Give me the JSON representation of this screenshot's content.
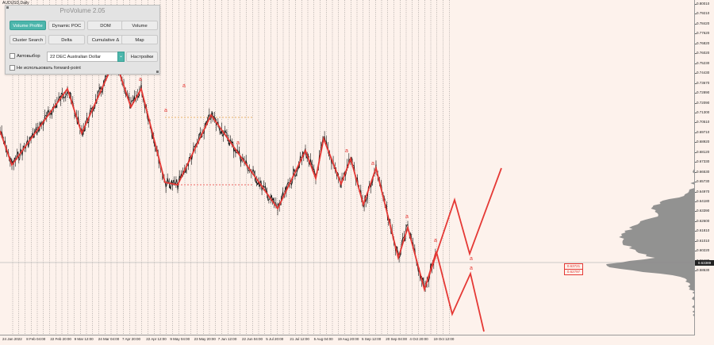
{
  "symbol_label": "AUDUSD,Daily",
  "panel": {
    "title": "ProVolume 2.05",
    "buttons": [
      {
        "label": "Volume Profile",
        "active": true
      },
      {
        "label": "Dynamic POC",
        "active": false
      },
      {
        "label": "DOM",
        "active": false
      },
      {
        "label": "Volume",
        "active": false
      },
      {
        "label": "Cluster Search",
        "active": false
      },
      {
        "label": "Delta",
        "active": false
      },
      {
        "label": "Cumulative Δ",
        "active": false
      },
      {
        "label": "Map",
        "active": false
      }
    ],
    "auto_select_label": "Автовыбор",
    "symbol_value": "22 DEC Australian Dollar",
    "dropdown_glyph": "⌄",
    "settings_label": "Настройки",
    "forward_point_label": "Не использовать forward-point"
  },
  "price_axis": [
    "0.80010",
    "0.79210",
    "0.78420",
    "0.77620",
    "0.76820",
    "0.76020",
    "0.75230",
    "0.74430",
    "0.73670",
    "0.72890",
    "0.72090",
    "0.71300",
    "0.70510",
    "0.69710",
    "0.68920",
    "0.68120",
    "0.67330",
    "0.66530",
    "0.65730",
    "0.64970",
    "0.64180",
    "0.63390",
    "0.62600",
    "0.61810",
    "0.61010",
    "0.60220",
    "0.59430",
    "0.58630"
  ],
  "current_price": "0.63389",
  "price_boxes": [
    "0.63721",
    "0.62797"
  ],
  "time_axis": [
    "24 Jan 2022",
    "8 Feb 04:00",
    "22 Feb 20:00",
    "9 Mar 12:00",
    "24 Mar 04:00",
    "7 Apr 20:00",
    "22 Apr 12:00",
    "9 May 04:00",
    "23 May 20:00",
    "7 Jun 12:00",
    "22 Jun 04:00",
    "5 Jul 20:00",
    "21 Jul 12:00",
    "5 Aug 04:00",
    "19 Aug 20:00",
    "5 Sep 12:00",
    "20 Sep 04:00",
    "4 Oct 20:00",
    "19 Oct 12:00"
  ],
  "wave_marks": [
    "a",
    "a",
    "a",
    "a",
    "a",
    "a",
    "a",
    "a",
    "a",
    "a"
  ],
  "colors": {
    "wave": "#e53935",
    "candles": "#111111",
    "volume_profile": "#8c8c8c",
    "background": "#fdf2ec",
    "panel_accent": "#4db6ac"
  }
}
